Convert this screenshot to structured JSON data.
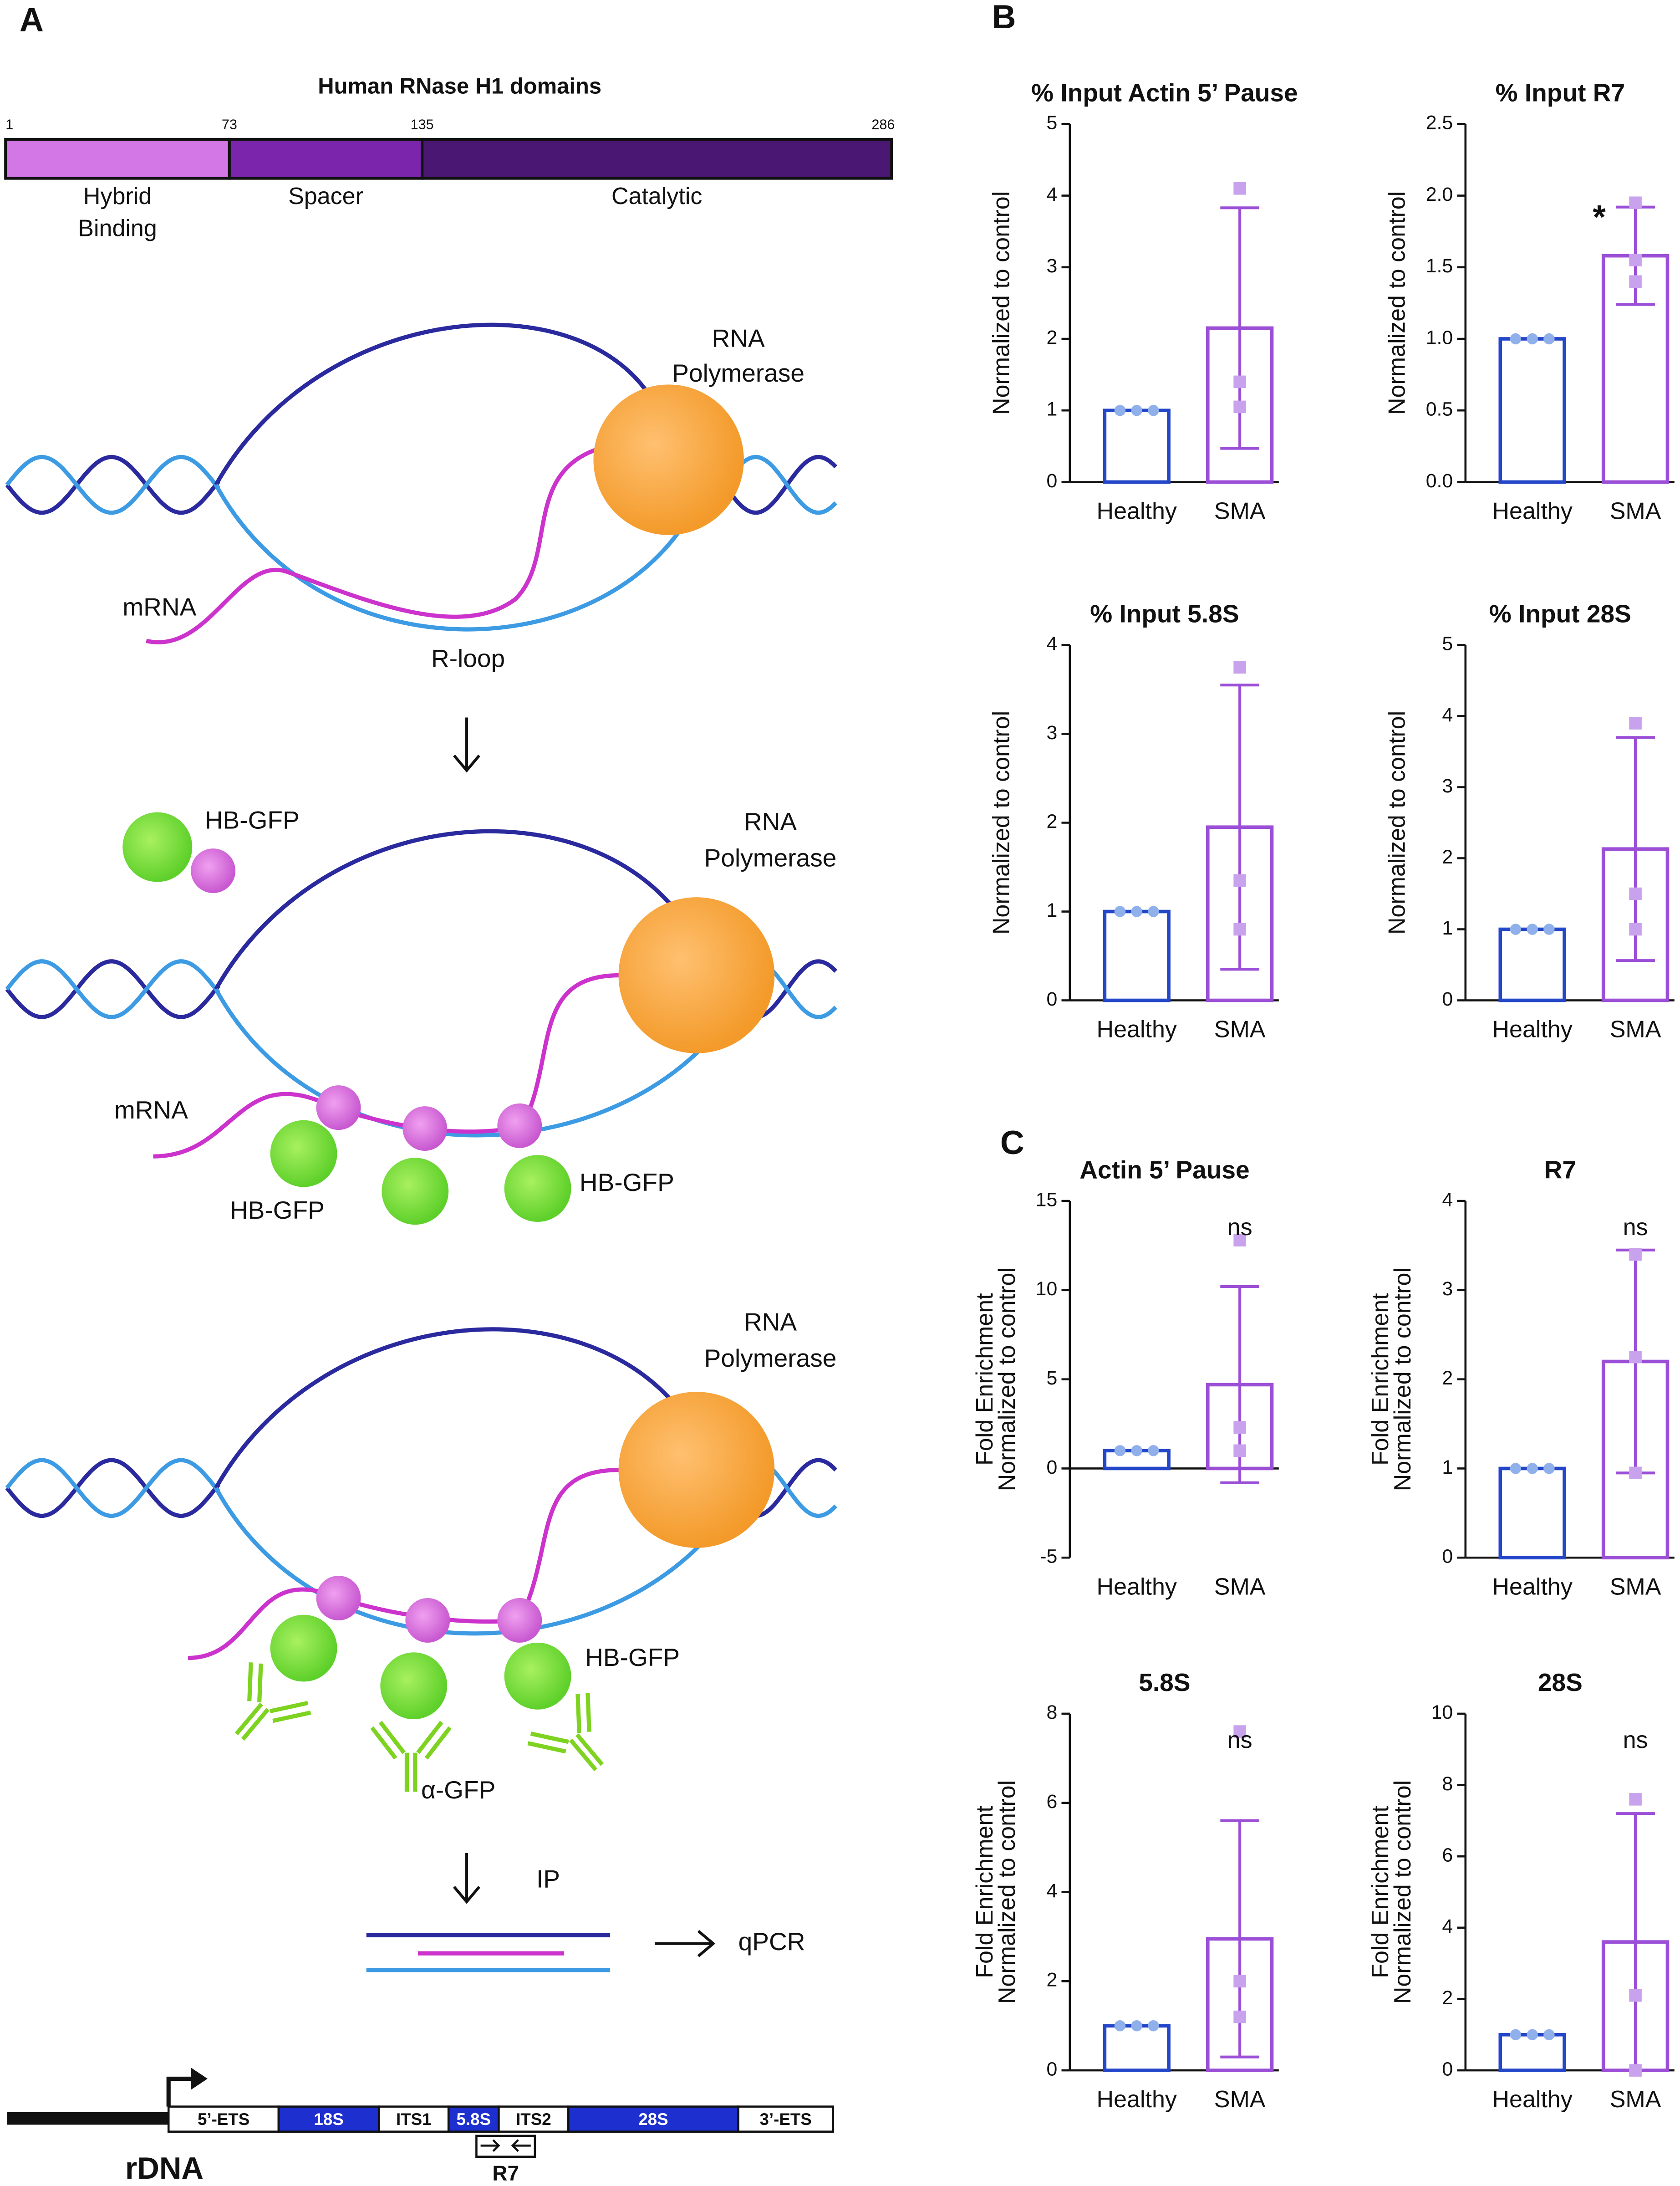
{
  "panels": {
    "a": "A",
    "b": "B",
    "c": "C"
  },
  "domains": {
    "title": "Human RNase H1 domains",
    "positions": [
      1,
      73,
      135,
      286
    ],
    "names": [
      [
        "Hybrid",
        "Binding"
      ],
      [
        "Spacer"
      ],
      [
        "Catalytic"
      ]
    ],
    "colors": [
      "#d376e6",
      "#7b25ad",
      "#4a1772"
    ]
  },
  "scene1": {
    "polymerase": [
      "RNA",
      "Polymerase"
    ],
    "mrna": "mRNA",
    "rloop": "R-loop"
  },
  "scene2": {
    "polymerase": [
      "RNA",
      "Polymerase"
    ],
    "mrna": "mRNA",
    "probe": "HB-GFP",
    "probe_left": "HB-GFP",
    "probe_right": "HB-GFP"
  },
  "scene3": {
    "polymerase": [
      "RNA",
      "Polymerase"
    ],
    "probe": "HB-GFP",
    "antibody": "α-GFP"
  },
  "ip": "IP",
  "qpcr": "qPCR",
  "rdna": {
    "label": "rDNA",
    "regions": [
      "5’-ETS",
      "18S",
      "ITS1",
      "5.8S",
      "ITS2",
      "28S",
      "3’-ETS"
    ],
    "amplicon": "R7"
  },
  "chart_data": [
    {
      "type": "bar",
      "title": "% Input Actin 5’ Pause",
      "y_label": [
        "Normalized to control"
      ],
      "categories": [
        "Healthy",
        "SMA"
      ],
      "values": [
        1,
        2.15
      ],
      "errors": [
        0,
        1.68
      ],
      "points": [
        [
          1,
          1,
          1
        ],
        [
          4.1,
          1.4,
          1.05
        ]
      ],
      "colors": [
        "#2446c8",
        "#9b4fd6"
      ],
      "point_colors": [
        "#8fb0ea",
        "#c8a2ec"
      ],
      "ylim": [
        0,
        5
      ],
      "yticks": [
        0,
        1,
        2,
        3,
        4,
        5
      ]
    },
    {
      "type": "bar",
      "title": "% Input R7",
      "y_label": [
        "Normalized to control"
      ],
      "categories": [
        "Healthy",
        "SMA"
      ],
      "values": [
        1,
        1.58
      ],
      "errors": [
        0,
        0.34
      ],
      "points": [
        [
          1,
          1,
          1
        ],
        [
          1.95,
          1.55,
          1.4
        ]
      ],
      "colors": [
        "#2446c8",
        "#9b4fd6"
      ],
      "point_colors": [
        "#8fb0ea",
        "#c8a2ec"
      ],
      "ylim": [
        0,
        2.5
      ],
      "yticks": [
        {
          "value": 0,
          "label": "0.0"
        },
        0.5,
        {
          "value": 1,
          "label": "1.0"
        },
        1.5,
        {
          "value": 2,
          "label": "2.0"
        },
        2.5
      ],
      "annotation": "*"
    },
    {
      "type": "bar",
      "title": "% Input 5.8S",
      "y_label": [
        "Normalized to control"
      ],
      "categories": [
        "Healthy",
        "SMA"
      ],
      "values": [
        1,
        1.95
      ],
      "errors": [
        0,
        1.6
      ],
      "points": [
        [
          1,
          1,
          1
        ],
        [
          3.75,
          1.35,
          0.8
        ]
      ],
      "colors": [
        "#2446c8",
        "#9b4fd6"
      ],
      "point_colors": [
        "#8fb0ea",
        "#c8a2ec"
      ],
      "ylim": [
        0,
        4
      ],
      "yticks": [
        0,
        1,
        2,
        3,
        4
      ]
    },
    {
      "type": "bar",
      "title": "% Input 28S",
      "y_label": [
        "Normalized to control"
      ],
      "categories": [
        "Healthy",
        "SMA"
      ],
      "values": [
        1,
        2.13
      ],
      "errors": [
        0,
        1.57
      ],
      "points": [
        [
          1,
          1,
          1
        ],
        [
          3.9,
          1.5,
          1.0
        ]
      ],
      "colors": [
        "#2446c8",
        "#9b4fd6"
      ],
      "point_colors": [
        "#8fb0ea",
        "#c8a2ec"
      ],
      "ylim": [
        0,
        5
      ],
      "yticks": [
        0,
        1,
        2,
        3,
        4,
        5
      ]
    },
    {
      "type": "bar",
      "title": "Actin 5’ Pause",
      "y_label": [
        "Fold Enrichment",
        "Normalized to control"
      ],
      "categories": [
        "Healthy",
        "SMA"
      ],
      "values": [
        1,
        4.7
      ],
      "errors": [
        0,
        5.5
      ],
      "points": [
        [
          1,
          1,
          1
        ],
        [
          12.8,
          2.3,
          1.0
        ]
      ],
      "colors": [
        "#2446c8",
        "#9b4fd6"
      ],
      "point_colors": [
        "#8fb0ea",
        "#c8a2ec"
      ],
      "ylim": [
        -5,
        15
      ],
      "yticks": [
        -5,
        0,
        5,
        10,
        15
      ],
      "annotation": "ns"
    },
    {
      "type": "bar",
      "title": "R7",
      "y_label": [
        "Fold Enrichment",
        "Normalized to control"
      ],
      "categories": [
        "Healthy",
        "SMA"
      ],
      "values": [
        1,
        2.2
      ],
      "errors": [
        0,
        1.25
      ],
      "points": [
        [
          1,
          1,
          1
        ],
        [
          3.4,
          2.25,
          0.95
        ]
      ],
      "colors": [
        "#2446c8",
        "#9b4fd6"
      ],
      "point_colors": [
        "#8fb0ea",
        "#c8a2ec"
      ],
      "ylim": [
        0,
        4
      ],
      "yticks": [
        0,
        1,
        2,
        3,
        4
      ],
      "annotation": "ns"
    },
    {
      "type": "bar",
      "title": "5.8S",
      "y_label": [
        "Fold Enrichment",
        "Normalized to control"
      ],
      "categories": [
        "Healthy",
        "SMA"
      ],
      "values": [
        1,
        2.95
      ],
      "errors": [
        0,
        2.65
      ],
      "points": [
        [
          1,
          1,
          1
        ],
        [
          7.6,
          2.0,
          1.2
        ]
      ],
      "colors": [
        "#2446c8",
        "#9b4fd6"
      ],
      "point_colors": [
        "#8fb0ea",
        "#c8a2ec"
      ],
      "ylim": [
        0,
        8
      ],
      "yticks": [
        0,
        2,
        4,
        6,
        8
      ],
      "annotation": "ns"
    },
    {
      "type": "bar",
      "title": "28S",
      "y_label": [
        "Fold Enrichment",
        "Normalized to control"
      ],
      "categories": [
        "Healthy",
        "SMA"
      ],
      "values": [
        1,
        3.6
      ],
      "errors": [
        0,
        3.6
      ],
      "points": [
        [
          1,
          1,
          1
        ],
        [
          7.6,
          2.1,
          0
        ]
      ],
      "colors": [
        "#2446c8",
        "#9b4fd6"
      ],
      "point_colors": [
        "#8fb0ea",
        "#c8a2ec"
      ],
      "ylim": [
        0,
        10
      ],
      "yticks": [
        0,
        2,
        4,
        6,
        8,
        10
      ],
      "annotation": "ns"
    }
  ]
}
